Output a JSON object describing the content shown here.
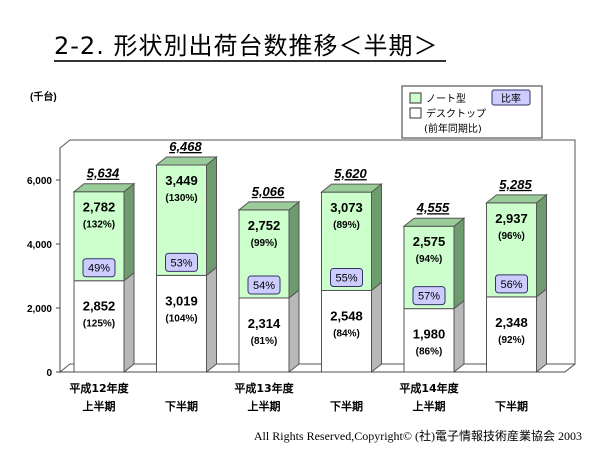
{
  "title": "2-2. 形状別出荷台数推移＜半期＞",
  "footer": "All Rights Reserved,Copyright© (社)電子情報技術産業協会 2003",
  "chart_data": {
    "type": "bar",
    "stacked": true,
    "yunit": "(千台)",
    "ylim": [
      0,
      7000
    ],
    "yticks": [
      "0",
      "2,000",
      "4,000",
      "6,000"
    ],
    "ytick_values": [
      0,
      2000,
      4000,
      6000
    ],
    "categories": [
      [
        "平成12年度",
        "上半期"
      ],
      [
        "",
        "下半期"
      ],
      [
        "平成13年度",
        "上半期"
      ],
      [
        "",
        "下半期"
      ],
      [
        "平成14年度",
        "上半期"
      ],
      [
        "",
        "下半期"
      ]
    ],
    "series": [
      {
        "name": "デスクトップ",
        "values": [
          2852,
          3019,
          2314,
          2548,
          1980,
          2348
        ],
        "labels": [
          "2,852",
          "3,019",
          "2,314",
          "2,548",
          "1,980",
          "2,348"
        ],
        "growth": [
          "(125%)",
          "(104%)",
          "(81%)",
          "(84%)",
          "(86%)",
          "(92%)"
        ],
        "color": "#ffffff"
      },
      {
        "name": "ノート型",
        "values": [
          2782,
          3449,
          2752,
          3073,
          2575,
          2937
        ],
        "labels": [
          "2,782",
          "3,449",
          "2,752",
          "3,073",
          "2,575",
          "2,937"
        ],
        "growth": [
          "(132%)",
          "(130%)",
          "(99%)",
          "(89%)",
          "(94%)",
          "(96%)"
        ],
        "color": "#ccffcc"
      }
    ],
    "totals": [
      "5,634",
      "6,468",
      "5,066",
      "5,620",
      "4,555",
      "5,285"
    ],
    "ratios": [
      "49%",
      "53%",
      "54%",
      "55%",
      "57%",
      "56%"
    ],
    "legend": {
      "position": "top-right",
      "items": [
        "ノート型",
        "デスクトップ"
      ],
      "ratio_label": "比率",
      "note": "(前年同期比)"
    },
    "grid": false
  }
}
